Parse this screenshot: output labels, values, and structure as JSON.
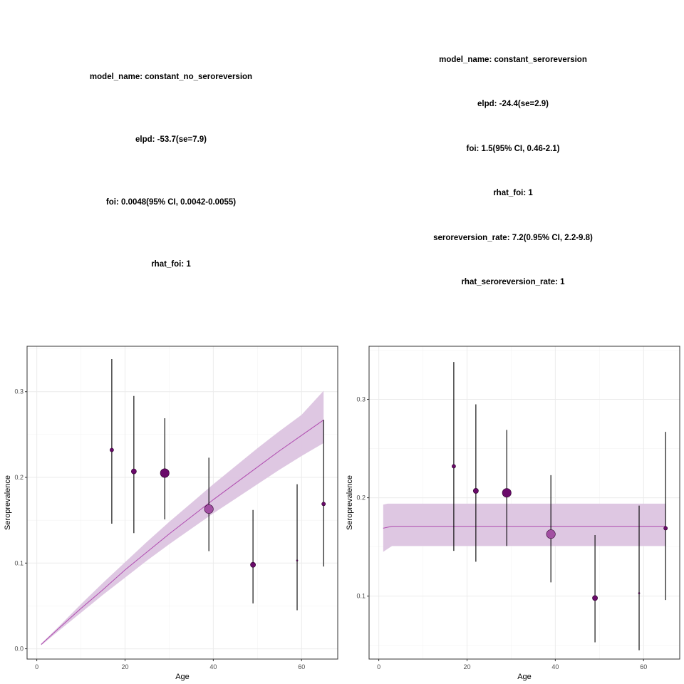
{
  "left_panel": {
    "stats": [
      "model_name: constant_no_seroreversion",
      "elpd: -53.7(se=7.9)",
      "foi: 0.0048(95% CI, 0.0042-0.0055)",
      "rhat_foi: 1"
    ]
  },
  "right_panel": {
    "stats": [
      "model_name: constant_seroreversion",
      "elpd: -24.4(se=2.9)",
      "foi: 1.5(95% CI, 0.46-2.1)",
      "rhat_foi: 1",
      "seroreversion_rate: 7.2(0.95% CI, 2.2-9.8)",
      "rhat_seroreversion_rate: 1"
    ]
  },
  "colors": {
    "ribbon": "#dcc4e0",
    "fit_line": "#b04cb0",
    "point_dark": "#6a0a6a",
    "point_mid": "#a24fa2",
    "grid": "#ebebeb",
    "panel_border": "#333333"
  },
  "chart_data": [
    {
      "type": "scatter",
      "panel": "left",
      "xlabel": "Age",
      "ylabel": "Seroprevalence",
      "xlim": [
        -2.2,
        68.2
      ],
      "ylim": [
        -0.012,
        0.353
      ],
      "xticks": [
        0,
        20,
        40,
        60
      ],
      "xtick_labels": [
        "0",
        "20",
        "40",
        "60"
      ],
      "yticks": [
        0.0,
        0.1,
        0.2,
        0.3
      ],
      "ytick_labels": [
        "0.0",
        "0.1",
        "0.2",
        "0.3"
      ],
      "grid": true,
      "observed": {
        "age": [
          17,
          22,
          29,
          39,
          49,
          59,
          65
        ],
        "seroprevalence": [
          0.232,
          0.207,
          0.205,
          0.163,
          0.098,
          0.103,
          0.169
        ],
        "lower": [
          0.146,
          0.135,
          0.151,
          0.114,
          0.053,
          0.045,
          0.096
        ],
        "upper": [
          0.338,
          0.295,
          0.269,
          0.223,
          0.162,
          0.192,
          0.267
        ],
        "size": [
          1,
          2,
          4,
          4,
          2,
          0,
          1
        ]
      },
      "fitted": {
        "age": [
          1,
          5,
          10,
          15,
          20,
          25,
          30,
          35,
          40,
          45,
          50,
          55,
          60,
          65
        ],
        "median": [
          0.005,
          0.024,
          0.047,
          0.069,
          0.092,
          0.113,
          0.134,
          0.154,
          0.174,
          0.193,
          0.212,
          0.231,
          0.249,
          0.267
        ],
        "lower": [
          0.004,
          0.021,
          0.042,
          0.063,
          0.083,
          0.103,
          0.122,
          0.14,
          0.158,
          0.175,
          0.192,
          0.209,
          0.225,
          0.24
        ],
        "upper": [
          0.006,
          0.026,
          0.052,
          0.077,
          0.101,
          0.125,
          0.148,
          0.17,
          0.192,
          0.213,
          0.234,
          0.254,
          0.273,
          0.301
        ]
      }
    },
    {
      "type": "scatter",
      "panel": "right",
      "xlabel": "Age",
      "ylabel": "Seroprevalence",
      "xlim": [
        -2.2,
        68.2
      ],
      "ylim": [
        0.036,
        0.354
      ],
      "xticks": [
        0,
        20,
        40,
        60
      ],
      "xtick_labels": [
        "0",
        "20",
        "40",
        "60"
      ],
      "yticks": [
        0.1,
        0.2,
        0.3
      ],
      "ytick_labels": [
        "0.1",
        "0.2",
        "0.3"
      ],
      "grid": true,
      "observed": {
        "age": [
          17,
          22,
          29,
          39,
          49,
          59,
          65
        ],
        "seroprevalence": [
          0.232,
          0.207,
          0.205,
          0.163,
          0.098,
          0.103,
          0.169
        ],
        "lower": [
          0.146,
          0.135,
          0.151,
          0.114,
          0.053,
          0.045,
          0.096
        ],
        "upper": [
          0.338,
          0.295,
          0.269,
          0.223,
          0.162,
          0.192,
          0.267
        ],
        "size": [
          1,
          2,
          4,
          4,
          2,
          0,
          1
        ]
      },
      "fitted": {
        "age": [
          1,
          2,
          3,
          10,
          20,
          30,
          40,
          50,
          60,
          65
        ],
        "median": [
          0.169,
          0.17,
          0.171,
          0.171,
          0.171,
          0.171,
          0.171,
          0.171,
          0.171,
          0.171
        ],
        "lower": [
          0.145,
          0.148,
          0.151,
          0.151,
          0.151,
          0.151,
          0.151,
          0.151,
          0.151,
          0.151
        ],
        "upper": [
          0.193,
          0.194,
          0.194,
          0.194,
          0.194,
          0.194,
          0.194,
          0.194,
          0.194,
          0.194
        ]
      }
    }
  ]
}
